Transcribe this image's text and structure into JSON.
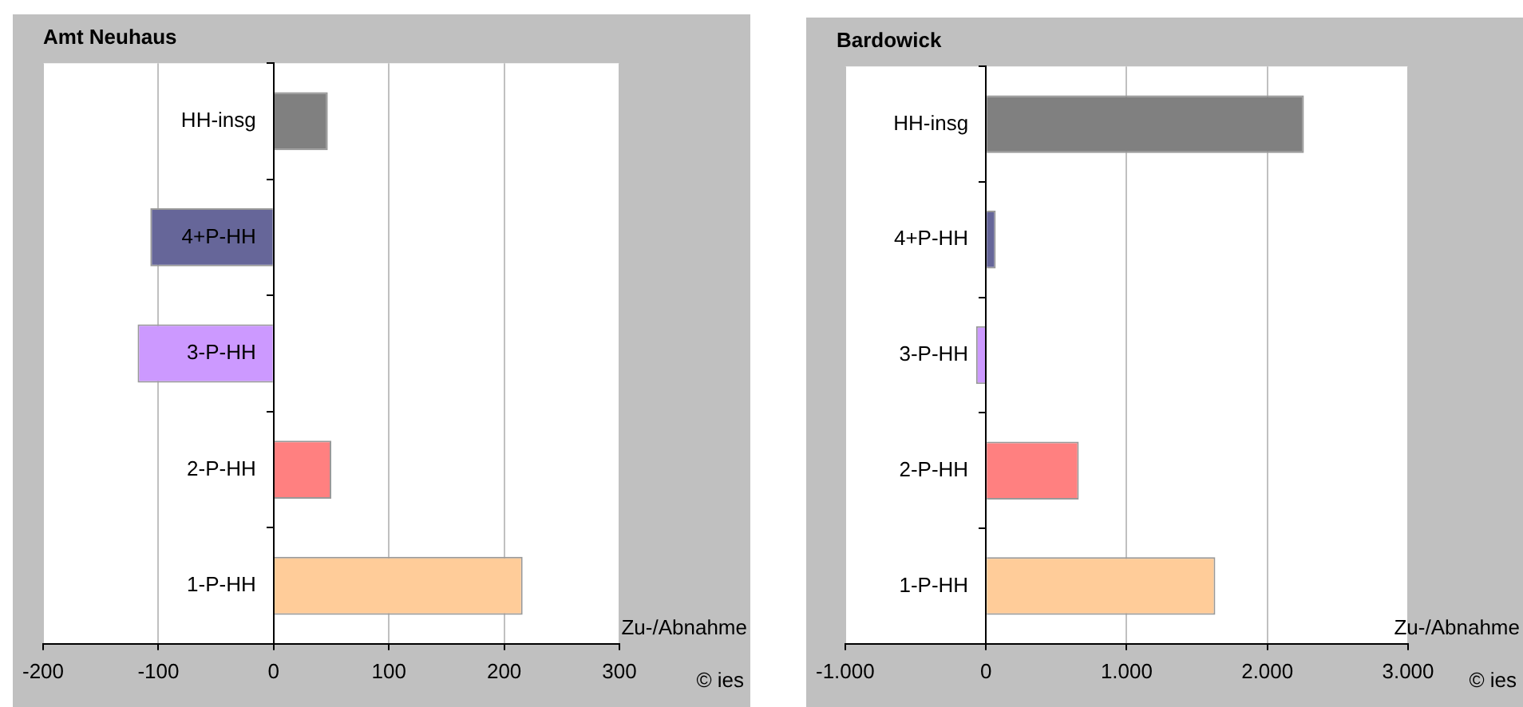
{
  "chart_data": [
    {
      "type": "bar",
      "orientation": "horizontal",
      "title": "Amt Neuhaus",
      "xlabel": "Zu-/Abnahme",
      "annotations": [
        "© ies"
      ],
      "categories": [
        "HH-insg",
        "4+P-HH",
        "3-P-HH",
        "2-P-HH",
        "1-P-HH"
      ],
      "values": [
        47,
        -107,
        -118,
        50,
        216
      ],
      "colors": [
        "#808080",
        "#666699",
        "#cc99ff",
        "#ff8080",
        "#ffcc99"
      ],
      "xlim": [
        -200,
        300
      ],
      "xticks": [
        -200,
        -100,
        0,
        100,
        200,
        300
      ],
      "grid": "x",
      "legend": false
    },
    {
      "type": "bar",
      "orientation": "horizontal",
      "title": "Bardowick",
      "xlabel": "Zu-/Abnahme",
      "annotations": [
        "© ies"
      ],
      "categories": [
        "HH-insg",
        "4+P-HH",
        "3-P-HH",
        "2-P-HH",
        "1-P-HH"
      ],
      "values": [
        2260,
        70,
        -70,
        660,
        1630
      ],
      "colors": [
        "#808080",
        "#666699",
        "#cc99ff",
        "#ff8080",
        "#ffcc99"
      ],
      "xlim": [
        -1000,
        3000
      ],
      "xticks": [
        {
          "value": -1000,
          "label": "-1.000"
        },
        0,
        {
          "value": 1000,
          "label": "1.000"
        },
        {
          "value": 2000,
          "label": "2.000"
        },
        {
          "value": 3000,
          "label": "3.000"
        }
      ],
      "grid": "x",
      "legend": false
    }
  ]
}
